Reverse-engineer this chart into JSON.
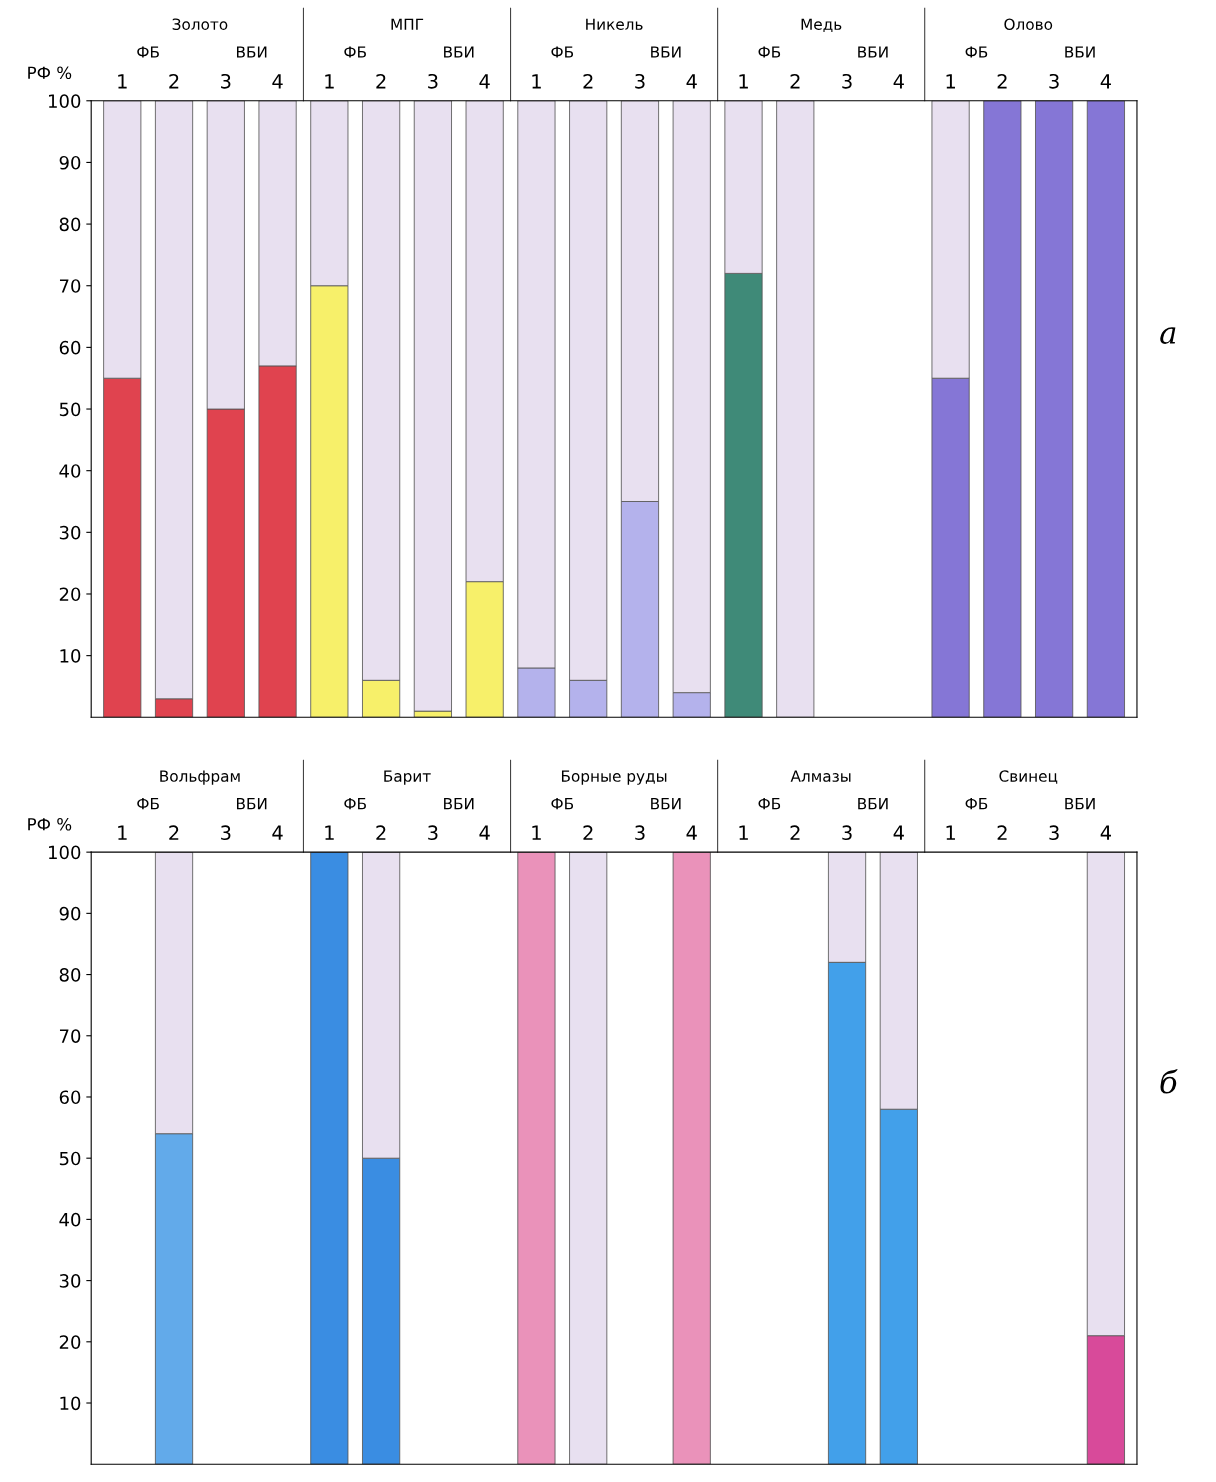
{
  "chart_data": [
    {
      "type": "bar",
      "stacked": true,
      "ylabel": "РФ %",
      "ylim": [
        0,
        100
      ],
      "yticks": [
        10,
        20,
        30,
        40,
        50,
        60,
        70,
        80,
        90,
        100
      ],
      "grid": false,
      "legend": false,
      "categories": [
        "1",
        "2",
        "3",
        "4",
        "1",
        "2",
        "3",
        "4",
        "1",
        "2",
        "3",
        "4",
        "1",
        "2",
        "3",
        "4",
        "1",
        "2",
        "3",
        "4"
      ],
      "series": [
        {
          "values": [
            55,
            3,
            50,
            57,
            70,
            6,
            1,
            22,
            8,
            6,
            35,
            4,
            72,
            null,
            null,
            null,
            55,
            100,
            100,
            100
          ],
          "colors": [
            "#e0434f",
            "#e0434f",
            "#e0434f",
            "#e0434f",
            "#f7f06a",
            "#f7f06a",
            "#f7f06a",
            "#f7f06a",
            "#b4b2ec",
            "#b4b2ec",
            "#b4b2ec",
            "#b4b2ec",
            "#3f8a78",
            "#3f8a78",
            "#3f8a78",
            "#3f8a78",
            "#8576d6",
            "#8576d6",
            "#8576d6",
            "#8576d6"
          ]
        },
        {
          "color": "#e8e0f0",
          "values": [
            45,
            97,
            50,
            43,
            30,
            94,
            99,
            78,
            92,
            94,
            65,
            96,
            28,
            100,
            null,
            null,
            45,
            null,
            null,
            null
          ]
        }
      ],
      "annotations": [
        "Золото",
        "МПГ",
        "Никель",
        "Медь",
        "Олово",
        "ФБ",
        "ВБИ",
        "ФБ",
        "ВБИ",
        "ФБ",
        "ВБИ",
        "ФБ",
        "ВБИ",
        "ФБ",
        "ВБИ",
        "а"
      ]
    },
    {
      "type": "bar",
      "stacked": true,
      "ylabel": "РФ %",
      "ylim": [
        0,
        100
      ],
      "yticks": [
        10,
        20,
        30,
        40,
        50,
        60,
        70,
        80,
        90,
        100
      ],
      "grid": false,
      "legend": false,
      "categories": [
        "1",
        "2",
        "3",
        "4",
        "1",
        "2",
        "3",
        "4",
        "1",
        "2",
        "3",
        "4",
        "1",
        "2",
        "3",
        "4",
        "1",
        "2",
        "3",
        "4"
      ],
      "series": [
        {
          "values": [
            null,
            54,
            null,
            null,
            100,
            50,
            null,
            null,
            100,
            null,
            null,
            100,
            null,
            null,
            82,
            58,
            null,
            null,
            null,
            21
          ],
          "colors": [
            "#62aaea",
            "#62aaea",
            "#62aaea",
            "#62aaea",
            "#3a8de2",
            "#3a8de2",
            "#3a8de2",
            "#3a8de2",
            "#ea92ba",
            "#ea92ba",
            "#ea92ba",
            "#ea92ba",
            "#42a0ea",
            "#42a0ea",
            "#42a0ea",
            "#42a0ea",
            "#d84a9a",
            "#d84a9a",
            "#d84a9a",
            "#d84a9a"
          ]
        },
        {
          "color": "#e8e0f0",
          "values": [
            null,
            46,
            null,
            null,
            null,
            50,
            null,
            null,
            null,
            100,
            null,
            null,
            null,
            null,
            18,
            42,
            null,
            null,
            null,
            79
          ]
        }
      ],
      "annotations": [
        "Вольфрам",
        "Барит",
        "Борные руды",
        "Алмазы",
        "Свинец",
        "ФБ",
        "ВБИ",
        "ФБ",
        "ВБИ",
        "ФБ",
        "ВБИ",
        "ФБ",
        "ВБИ",
        "ФБ",
        "ВБИ",
        "б"
      ]
    }
  ]
}
